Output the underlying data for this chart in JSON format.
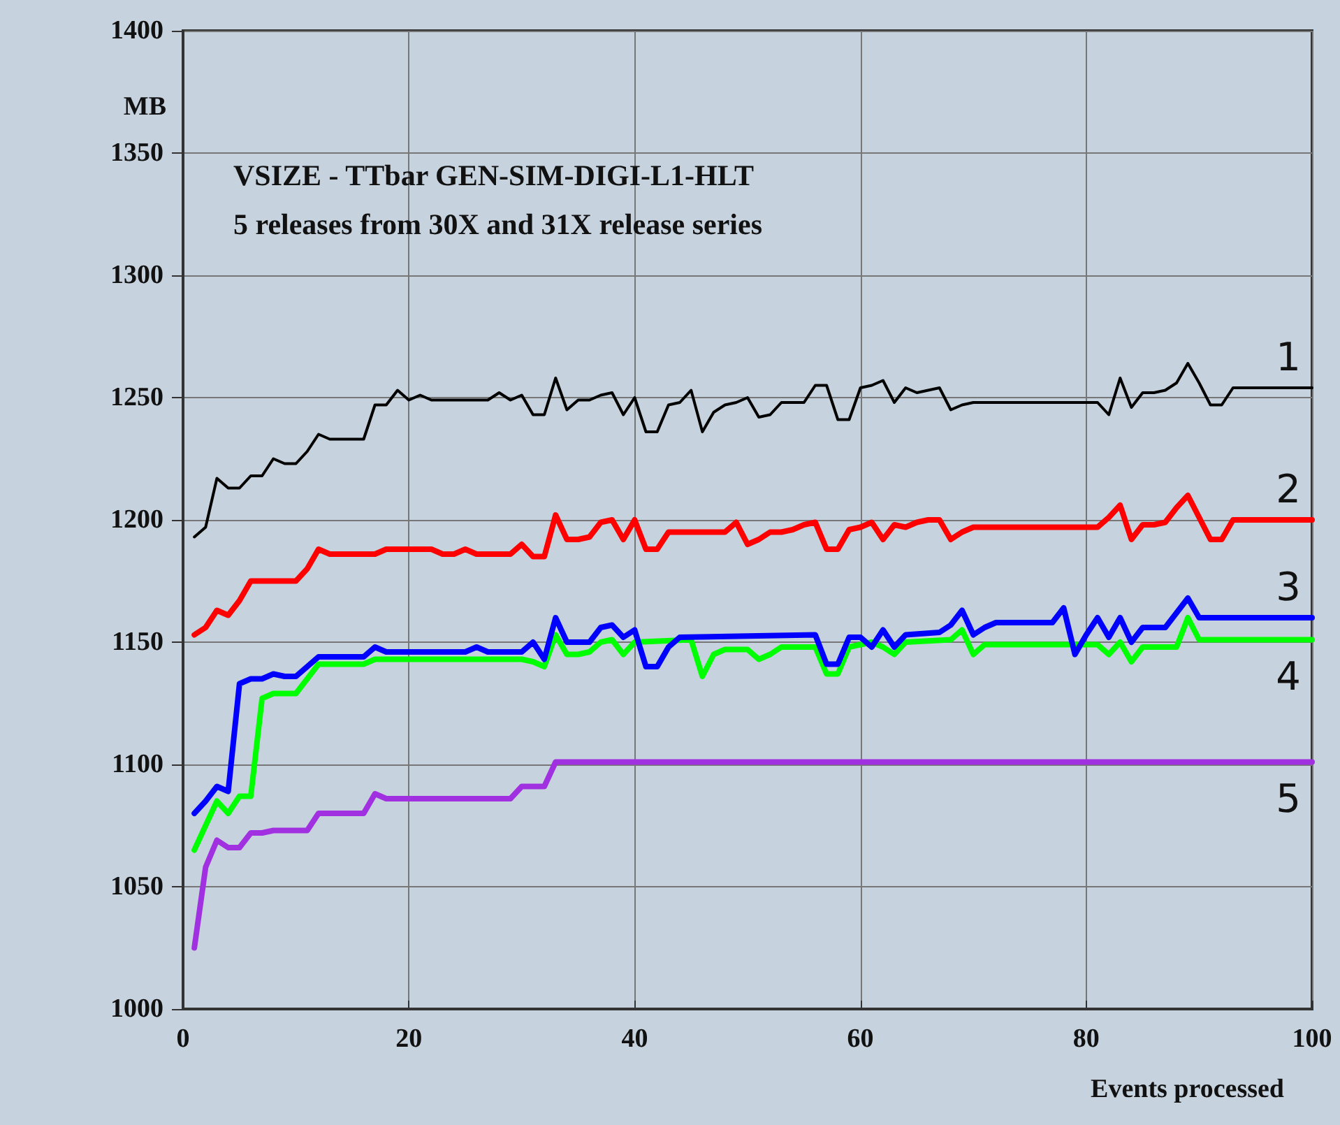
{
  "chart_data": {
    "type": "line",
    "title": "VSIZE - TTbar GEN-SIM-DIGI-L1-HLT",
    "subtitle": "5 releases from 30X and 31X release series",
    "xlabel": "Events processed",
    "ylabel": "MB",
    "xlim": [
      0,
      100
    ],
    "xticks": [
      0,
      20,
      40,
      60,
      80,
      100
    ],
    "ylim": [
      1000,
      1400
    ],
    "yticks": [
      1000,
      1050,
      1100,
      1150,
      1200,
      1250,
      1300,
      1350,
      1400
    ],
    "grid": true,
    "legend": false,
    "marker": "none",
    "line_style": "solid",
    "series": [
      {
        "name": "1",
        "color": "#000000",
        "x": [
          1,
          2,
          3,
          4,
          5,
          6,
          7,
          8,
          9,
          10,
          11,
          12,
          13,
          16,
          17,
          18,
          19,
          20,
          21,
          22,
          27,
          28,
          29,
          30,
          31,
          32,
          33,
          34,
          35,
          36,
          37,
          38,
          39,
          40,
          41,
          42,
          43,
          44,
          45,
          46,
          47,
          48,
          49,
          50,
          51,
          52,
          53,
          55,
          56,
          57,
          58,
          59,
          60,
          61,
          62,
          63,
          64,
          65,
          66,
          67,
          68,
          69,
          70,
          81,
          82,
          83,
          84,
          85,
          86,
          87,
          88,
          89,
          90,
          91,
          92,
          93,
          100
        ],
        "values": [
          1193,
          1197,
          1217,
          1213,
          1213,
          1218,
          1218,
          1225,
          1223,
          1223,
          1228,
          1235,
          1233,
          1233,
          1247,
          1247,
          1253,
          1249,
          1251,
          1249,
          1249,
          1252,
          1249,
          1251,
          1243,
          1243,
          1258,
          1245,
          1249,
          1249,
          1251,
          1252,
          1243,
          1250,
          1236,
          1236,
          1247,
          1248,
          1253,
          1236,
          1244,
          1247,
          1248,
          1250,
          1242,
          1243,
          1248,
          1248,
          1255,
          1255,
          1241,
          1241,
          1254,
          1255,
          1257,
          1248,
          1254,
          1252,
          1253,
          1254,
          1245,
          1247,
          1248,
          1248,
          1243,
          1258,
          1246,
          1252,
          1252,
          1253,
          1256,
          1264,
          1256,
          1247,
          1247,
          1254,
          1254
        ]
      },
      {
        "name": "2",
        "color": "#ff0000",
        "x": [
          1,
          2,
          3,
          4,
          5,
          6,
          10,
          11,
          12,
          13,
          17,
          18,
          22,
          23,
          24,
          25,
          26,
          29,
          30,
          31,
          32,
          33,
          34,
          35,
          36,
          37,
          38,
          39,
          40,
          41,
          42,
          43,
          48,
          49,
          50,
          51,
          52,
          53,
          54,
          55,
          56,
          57,
          58,
          59,
          60,
          61,
          62,
          63,
          64,
          65,
          66,
          67,
          68,
          69,
          70,
          81,
          82,
          83,
          84,
          85,
          86,
          87,
          88,
          89,
          90,
          91,
          92,
          93,
          100
        ],
        "values": [
          1153,
          1156,
          1163,
          1161,
          1167,
          1175,
          1175,
          1180,
          1188,
          1186,
          1186,
          1188,
          1188,
          1186,
          1186,
          1188,
          1186,
          1186,
          1190,
          1185,
          1185,
          1202,
          1192,
          1192,
          1193,
          1199,
          1200,
          1192,
          1200,
          1188,
          1188,
          1195,
          1195,
          1199,
          1190,
          1192,
          1195,
          1195,
          1196,
          1198,
          1199,
          1188,
          1188,
          1196,
          1197,
          1199,
          1192,
          1198,
          1197,
          1199,
          1200,
          1200,
          1192,
          1195,
          1197,
          1197,
          1201,
          1206,
          1192,
          1198,
          1198,
          1199,
          1205,
          1210,
          1201,
          1192,
          1192,
          1200,
          1200
        ]
      },
      {
        "name": "3",
        "color": "#0000ff",
        "x": [
          1,
          2,
          3,
          4,
          5,
          6,
          7,
          8,
          9,
          10,
          11,
          12,
          16,
          17,
          18,
          25,
          26,
          27,
          30,
          31,
          32,
          33,
          34,
          36,
          37,
          38,
          39,
          40,
          41,
          42,
          43,
          44,
          56,
          57,
          58,
          59,
          60,
          61,
          62,
          63,
          64,
          67,
          68,
          69,
          70,
          71,
          72,
          77,
          78,
          79,
          80,
          81,
          82,
          83,
          84,
          85,
          87,
          88,
          89,
          90,
          100
        ],
        "values": [
          1080,
          1085,
          1091,
          1089,
          1133,
          1135,
          1135,
          1137,
          1136,
          1136,
          1140,
          1144,
          1144,
          1148,
          1146,
          1146,
          1148,
          1146,
          1146,
          1150,
          1143,
          1160,
          1150,
          1150,
          1156,
          1157,
          1152,
          1155,
          1140,
          1140,
          1148,
          1152,
          1153,
          1141,
          1141,
          1152,
          1152,
          1148,
          1155,
          1148,
          1153,
          1154,
          1157,
          1163,
          1153,
          1156,
          1158,
          1158,
          1164,
          1145,
          1153,
          1160,
          1152,
          1160,
          1150,
          1156,
          1156,
          1162,
          1168,
          1160,
          1160
        ]
      },
      {
        "name": "4",
        "color": "#00ff00",
        "x": [
          1,
          2,
          3,
          4,
          5,
          6,
          7,
          8,
          10,
          11,
          12,
          16,
          17,
          30,
          31,
          32,
          33,
          34,
          35,
          36,
          37,
          38,
          39,
          40,
          45,
          46,
          47,
          48,
          50,
          51,
          52,
          53,
          56,
          57,
          58,
          59,
          60,
          61,
          62,
          63,
          64,
          68,
          69,
          70,
          71,
          81,
          82,
          83,
          84,
          85,
          88,
          89,
          90,
          100
        ],
        "values": [
          1065,
          1075,
          1085,
          1080,
          1087,
          1087,
          1127,
          1129,
          1129,
          1135,
          1141,
          1141,
          1143,
          1143,
          1142,
          1140,
          1153,
          1145,
          1145,
          1146,
          1150,
          1151,
          1145,
          1150,
          1151,
          1136,
          1145,
          1147,
          1147,
          1143,
          1145,
          1148,
          1148,
          1137,
          1137,
          1148,
          1149,
          1150,
          1148,
          1145,
          1150,
          1151,
          1155,
          1145,
          1149,
          1149,
          1145,
          1150,
          1142,
          1148,
          1148,
          1160,
          1151,
          1151
        ]
      },
      {
        "name": "5",
        "color": "#a030e0",
        "x": [
          1,
          2,
          3,
          4,
          5,
          6,
          7,
          8,
          11,
          12,
          16,
          17,
          18,
          29,
          30,
          32,
          33,
          100
        ],
        "values": [
          1025,
          1058,
          1069,
          1066,
          1066,
          1072,
          1072,
          1073,
          1073,
          1080,
          1080,
          1088,
          1086,
          1086,
          1091,
          1091,
          1101,
          1101
        ]
      }
    ]
  }
}
